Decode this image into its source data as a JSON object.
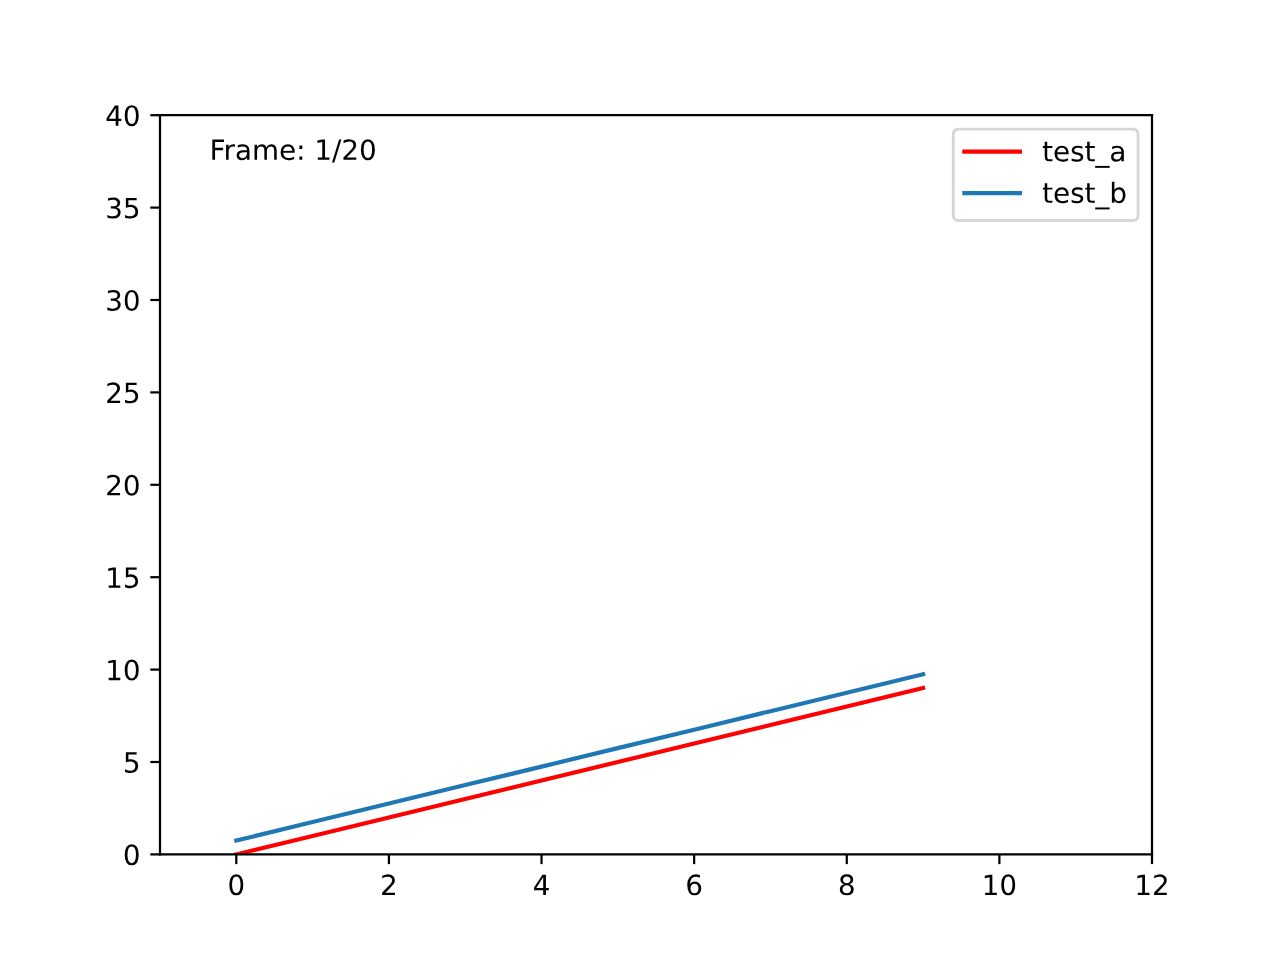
{
  "chart_data": {
    "type": "line",
    "x": [
      0,
      1,
      2,
      3,
      4,
      5,
      6,
      7,
      8,
      9
    ],
    "series": [
      {
        "name": "test_a",
        "color": "#ff0000",
        "values": [
          0,
          1,
          2,
          3,
          4,
          5,
          6,
          7,
          8,
          9
        ]
      },
      {
        "name": "test_b",
        "color": "#1f77b4",
        "values": [
          0.75,
          1.75,
          2.75,
          3.75,
          4.75,
          5.75,
          6.75,
          7.75,
          8.75,
          9.75
        ]
      }
    ],
    "xlim": [
      -1,
      12
    ],
    "ylim": [
      0,
      40
    ],
    "xticks": [
      0,
      2,
      4,
      6,
      8,
      10,
      12
    ],
    "yticks": [
      0,
      5,
      10,
      15,
      20,
      25,
      30,
      35,
      40
    ],
    "annotations": [
      "Frame: 1/20"
    ],
    "legend": "top right",
    "grid": false,
    "marker": "none",
    "line_style": "solid"
  }
}
